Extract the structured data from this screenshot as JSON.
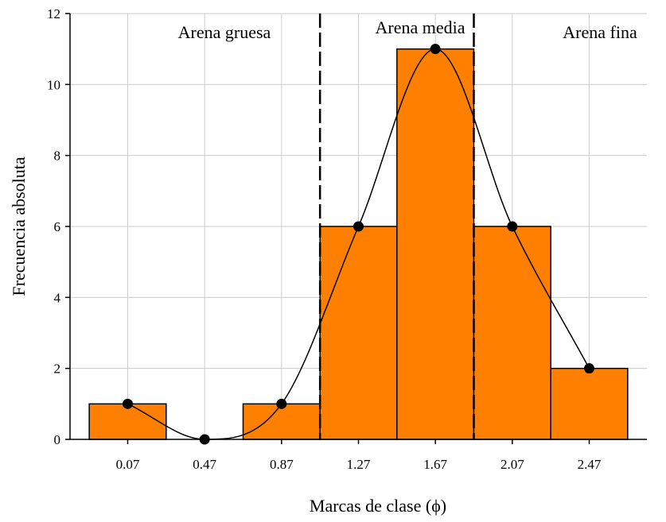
{
  "chart_data": {
    "type": "bar",
    "categories": [
      "0.07",
      "0.47",
      "0.87",
      "1.27",
      "1.67",
      "2.07",
      "2.47"
    ],
    "x": [
      0.07,
      0.47,
      0.87,
      1.27,
      1.67,
      2.07,
      2.47
    ],
    "values": [
      1,
      0,
      1,
      6,
      11,
      6,
      2
    ],
    "xlabel": "Marcas de clase (ϕ)",
    "ylabel": "Frecuencia absoluta",
    "ylim": [
      0,
      12
    ],
    "xlim": [
      -0.23,
      2.77
    ],
    "y_ticks": [
      "0",
      "2",
      "4",
      "6",
      "8",
      "10",
      "12"
    ],
    "grid": true,
    "overlay": "smooth frequency curve through bar-top points",
    "region_dividers": [
      1.07,
      1.87
    ],
    "regions": [
      {
        "label": "Arena gruesa"
      },
      {
        "label": "Arena media"
      },
      {
        "label": "Arena fina"
      }
    ],
    "colors": {
      "bar": "#ff8000",
      "bar_stroke": "#000000",
      "grid": "#cccccc",
      "curve": "#000000",
      "point": "#000000"
    }
  }
}
